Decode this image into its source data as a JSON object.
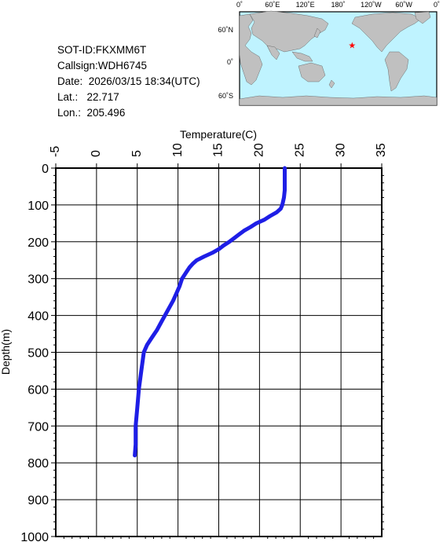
{
  "info": {
    "sot_id": "SOT-ID:FKXMM6T",
    "callsign": "Callsign:WDH6745",
    "date": "Date:  2026/03/15 18:34(UTC)",
    "lat": "Lat.:   22.717",
    "lon": "Lon.:  205.496"
  },
  "map": {
    "top_labels": [
      "0˚",
      "60˚E",
      "120˚E",
      "180˚",
      "120˚W",
      "60˚W",
      "0˚"
    ],
    "left_labels": [
      "60˚N",
      "0˚",
      "60˚S"
    ],
    "ocean_color": "#bff3ff",
    "land_color": "#c0c0c0",
    "marker": {
      "symbol": "★",
      "lon": 205.496,
      "lat": 22.717,
      "color": "#ff0000"
    }
  },
  "chart_data": {
    "type": "line",
    "title": "",
    "xlabel": "Temperature(C)",
    "ylabel": "Depth(m)",
    "xlim": [
      -5,
      35
    ],
    "ylim": [
      0,
      1000
    ],
    "x_ticks": [
      "-5",
      "0",
      "5",
      "10",
      "15",
      "20",
      "25",
      "30",
      "35"
    ],
    "y_ticks": [
      "0",
      "100",
      "200",
      "300",
      "400",
      "500",
      "600",
      "700",
      "800",
      "900",
      "1000"
    ],
    "grid": true,
    "line_color": "#1e1ee6",
    "series": [
      {
        "depth": [
          0,
          20,
          40,
          60,
          80,
          100,
          110,
          120,
          130,
          140,
          150,
          160,
          170,
          180,
          190,
          200,
          210,
          220,
          230,
          240,
          250,
          260,
          270,
          280,
          290,
          300,
          320,
          340,
          360,
          380,
          400,
          420,
          440,
          460,
          480,
          500,
          550,
          600,
          650,
          700,
          750,
          780
        ],
        "temperature": [
          23.1,
          23.1,
          23.1,
          23.1,
          23.0,
          22.8,
          22.6,
          22.1,
          21.3,
          20.6,
          19.6,
          18.9,
          18.1,
          17.5,
          16.9,
          16.3,
          15.6,
          15.0,
          14.2,
          13.2,
          12.3,
          11.8,
          11.4,
          11.1,
          10.8,
          10.5,
          10.2,
          9.8,
          9.4,
          8.9,
          8.4,
          7.9,
          7.4,
          6.8,
          6.2,
          5.8,
          5.5,
          5.2,
          5.0,
          4.8,
          4.8,
          4.7
        ]
      }
    ]
  }
}
